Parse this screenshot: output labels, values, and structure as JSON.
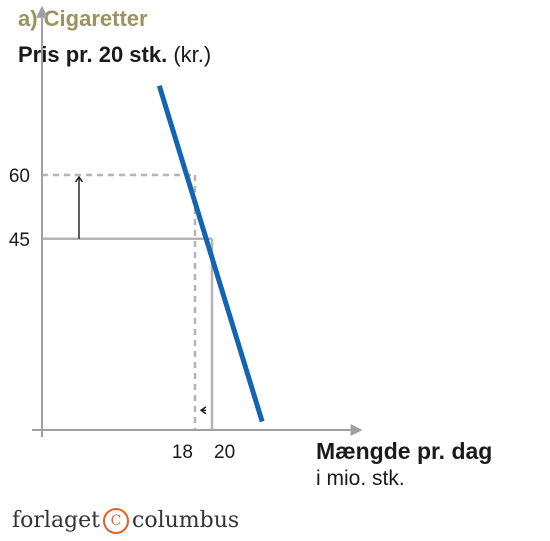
{
  "panel_title": "a) Cigaretter",
  "brand": {
    "left": "forlaget",
    "symbol": "C",
    "right": "columbus"
  },
  "colors": {
    "demand": "#1464b4",
    "axis": "#a0a0a0",
    "guides": "#b4b4b4",
    "title_accent": "#9c9260"
  },
  "chart_data": {
    "type": "line",
    "title": "a) Cigaretter",
    "ylabel": "Pris pr. 20 stk.",
    "ylabel_unit": "(kr.)",
    "xlabel": "Mængde pr. dag",
    "xlabel_sub": "i mio. stk.",
    "x_ticks": [
      "18",
      "20"
    ],
    "y_ticks": [
      "60",
      "45"
    ],
    "xlim": [
      0,
      36.3
    ],
    "ylim": [
      0,
      97
    ],
    "series": [
      {
        "x": [
          13.8,
          25.9
        ],
        "y": [
          81,
          2
        ],
        "style": "solid",
        "color": "#1464b4"
      }
    ],
    "guides": [
      {
        "from": [
          0,
          45
        ],
        "to": [
          20,
          45
        ],
        "style": "solid"
      },
      {
        "from": [
          20,
          45
        ],
        "to": [
          20,
          0
        ],
        "style": "solid"
      },
      {
        "from": [
          0,
          60
        ],
        "to": [
          18,
          60
        ],
        "style": "dashed"
      },
      {
        "from": [
          18,
          60
        ],
        "to": [
          18,
          0
        ],
        "style": "dashed"
      }
    ],
    "arrows": [
      {
        "from": [
          2,
          45
        ],
        "to": [
          2,
          60
        ],
        "direction": "up"
      },
      {
        "from": [
          20,
          3
        ],
        "to": [
          18,
          3
        ],
        "direction": "left"
      }
    ],
    "grid": false,
    "legend": "none"
  }
}
